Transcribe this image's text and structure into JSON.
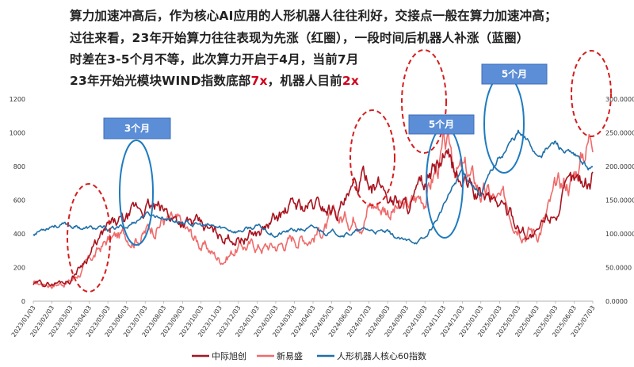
{
  "headline": {
    "line1": "算力加速冲高后，作为核心AI应用的人形机器人往往利好，交接点一般在算力加速冲高；",
    "line2": "过往来看，23年开始算力往往表现为先涨（红圈），一段时间后机器人补涨（蓝圈）",
    "line3": "时差在3-5个月不等，此次算力开启于4月，当前7月",
    "line4_prefix": "23年开始光模块WIND指数底部",
    "line4_v1": "7x",
    "line4_mid": "，机器人目前",
    "line4_v2": "2x"
  },
  "annotations": {
    "box1": "3个月",
    "box2": "5个月",
    "box3": "5个月"
  },
  "colors": {
    "zhongji": "#a8131f",
    "xinyisheng": "#ef6b6b",
    "robot": "#1f6fa8",
    "annotation_box": "#5b8ed6",
    "red_circle": "#d41e1e",
    "blue_circle": "#1f7bc0"
  },
  "chart_data": {
    "type": "line",
    "title": "",
    "left_axis": {
      "ylim": [
        0,
        1200
      ],
      "ticks": [
        "0",
        "200",
        "400",
        "600",
        "800",
        "1000",
        "1200"
      ]
    },
    "right_axis": {
      "ylim": [
        0,
        300
      ],
      "ticks": [
        "0.0000",
        "50.0000",
        "100.0000",
        "150.0000",
        "200.0000",
        "250.0000",
        "300.0000"
      ]
    },
    "x_tick_labels": [
      "2023/01/03",
      "2023/02/03",
      "2023/03/03",
      "2023/04/03",
      "2023/05/03",
      "2023/06/03",
      "2023/07/03",
      "2023/08/03",
      "2023/09/03",
      "2023/10/03",
      "2023/11/03",
      "2023/12/03",
      "2024/01/03",
      "2024/02/03",
      "2024/03/03",
      "2024/04/03",
      "2024/05/03",
      "2024/06/03",
      "2024/07/03",
      "2024/08/03",
      "2024/09/03",
      "2024/10/03",
      "2024/11/03",
      "2024/12/03",
      "2025/01/03",
      "2025/02/03",
      "2025/03/03",
      "2025/04/03",
      "2025/05/03",
      "2025/06/03",
      "2025/07/03"
    ],
    "series": [
      {
        "name": "中际旭创",
        "axis": "left",
        "values": [
          100,
          105,
          130,
          290,
          420,
          470,
          560,
          520,
          480,
          430,
          380,
          390,
          400,
          480,
          560,
          560,
          560,
          600,
          740,
          640,
          570,
          660,
          830,
          700,
          620,
          590,
          460,
          380,
          560,
          680,
          750
        ]
      },
      {
        "name": "新易盛",
        "axis": "left",
        "values": [
          100,
          105,
          120,
          230,
          360,
          390,
          420,
          500,
          420,
          340,
          250,
          330,
          330,
          330,
          380,
          410,
          460,
          500,
          600,
          570,
          540,
          640,
          880,
          760,
          650,
          570,
          520,
          420,
          620,
          750,
          1040
        ]
      },
      {
        "name": "人形机器人核心60指数",
        "axis": "right",
        "values": [
          100,
          115,
          112,
          108,
          106,
          110,
          130,
          125,
          118,
          112,
          108,
          105,
          110,
          100,
          105,
          107,
          102,
          102,
          105,
          100,
          87,
          92,
          140,
          195,
          160,
          215,
          250,
          220,
          235,
          210,
          195
        ]
      }
    ]
  }
}
